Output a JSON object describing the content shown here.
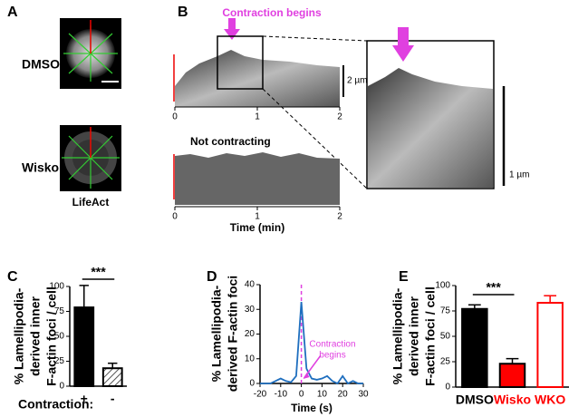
{
  "panel_labels": [
    "A",
    "B",
    "C",
    "D",
    "E"
  ],
  "panel_a": {
    "rows": [
      "DMSO",
      "Wisko"
    ],
    "caption": "LifeAct"
  },
  "panel_b": {
    "annotation": "Contraction begins",
    "note": "Not contracting",
    "xlabel": "Time (min)",
    "xticks": [
      0,
      1,
      2
    ],
    "scale_bar_top": "2 µm",
    "scale_bar_zoom": "1 µm"
  },
  "chart_data": [
    {
      "type": "bar",
      "ylabel": [
        "% Lamellipodia-",
        "derived inner",
        "F-actin foci / cell"
      ],
      "xlabel": "Contraction:",
      "categories": [
        "+",
        "-"
      ],
      "values": [
        79,
        18
      ],
      "errors": [
        22,
        5
      ],
      "colors": [
        "#000000",
        "#ffffff"
      ],
      "hatch": [
        false,
        true
      ],
      "label_colors": [
        "#000000",
        "#000000"
      ],
      "significance": "***",
      "ylim": [
        0,
        100
      ],
      "yticks": [
        0,
        25,
        50,
        75,
        100
      ]
    },
    {
      "type": "line",
      "ylabel": [
        "% Lamellipodia-",
        "derived F-actin foci"
      ],
      "xlabel": "Time (s)",
      "x": [
        -20,
        -17.5,
        -15,
        -12.5,
        -10,
        -7.5,
        -5,
        -2.5,
        0,
        2.5,
        5,
        7.5,
        10,
        12.5,
        15,
        17.5,
        20,
        22.5,
        25,
        27.5,
        30
      ],
      "values": [
        0,
        0,
        0,
        1,
        2,
        1,
        0.5,
        3,
        33,
        6,
        2,
        1.5,
        2,
        3,
        1,
        0,
        3,
        0,
        1,
        0,
        0
      ],
      "color": "#1f6fbf",
      "vline": 0,
      "vline_color": "#e040e0",
      "annotation": [
        "Contraction",
        "begins"
      ],
      "xlim": [
        -20,
        30
      ],
      "xticks": [
        -20,
        -10,
        0,
        10,
        20,
        30
      ],
      "ylim": [
        0,
        40
      ],
      "yticks": [
        0,
        10,
        20,
        30,
        40
      ]
    },
    {
      "type": "bar",
      "ylabel": [
        "% Lamellipodia-",
        "derived inner",
        "F-actin foci / cell"
      ],
      "categories": [
        "DMSO",
        "Wisko",
        "WKO"
      ],
      "values": [
        77,
        23,
        83
      ],
      "errors": [
        4,
        5,
        7
      ],
      "colors": [
        "#000000",
        "#ff0000",
        "#ffffff"
      ],
      "hatch": [
        false,
        false,
        false
      ],
      "label_colors": [
        "#000000",
        "#ff0000",
        "#ff0000"
      ],
      "significance": "***",
      "ylim": [
        0,
        100
      ],
      "yticks": [
        0,
        25,
        50,
        75,
        100
      ]
    }
  ]
}
